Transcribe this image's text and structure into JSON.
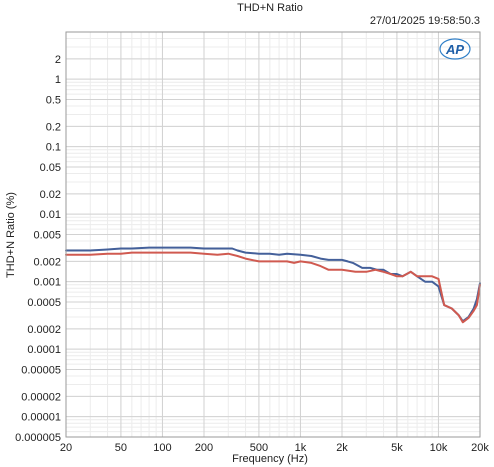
{
  "chart_data": {
    "type": "line",
    "title": "THD+N Ratio",
    "timestamp": "27/01/2025 19:58:50.3",
    "logo_text": "AP",
    "xlabel": "Frequency (Hz)",
    "ylabel": "THD+N Ratio (%)",
    "x_scale": "log",
    "y_scale": "log",
    "xlim": [
      20,
      20000
    ],
    "ylim": [
      5e-06,
      5
    ],
    "grid": true,
    "x_ticks": [
      {
        "value": 20,
        "label": "20"
      },
      {
        "value": 50,
        "label": "50"
      },
      {
        "value": 100,
        "label": "100"
      },
      {
        "value": 200,
        "label": "200"
      },
      {
        "value": 500,
        "label": "500"
      },
      {
        "value": 1000,
        "label": "1k"
      },
      {
        "value": 2000,
        "label": "2k"
      },
      {
        "value": 5000,
        "label": "5k"
      },
      {
        "value": 10000,
        "label": "10k"
      },
      {
        "value": 20000,
        "label": "20k"
      }
    ],
    "y_ticks": [
      {
        "value": 2,
        "label": "2"
      },
      {
        "value": 1,
        "label": "1"
      },
      {
        "value": 0.5,
        "label": "0.5"
      },
      {
        "value": 0.2,
        "label": "0.2"
      },
      {
        "value": 0.1,
        "label": "0.1"
      },
      {
        "value": 0.05,
        "label": "0.05"
      },
      {
        "value": 0.02,
        "label": "0.02"
      },
      {
        "value": 0.01,
        "label": "0.01"
      },
      {
        "value": 0.005,
        "label": "0.005"
      },
      {
        "value": 0.002,
        "label": "0.002"
      },
      {
        "value": 0.001,
        "label": "0.001"
      },
      {
        "value": 0.0005,
        "label": "0.0005"
      },
      {
        "value": 0.0002,
        "label": "0.0002"
      },
      {
        "value": 0.0001,
        "label": "0.0001"
      },
      {
        "value": 5e-05,
        "label": "0.00005"
      },
      {
        "value": 2e-05,
        "label": "0.00002"
      },
      {
        "value": 1e-05,
        "label": "0.00001"
      },
      {
        "value": 5e-06,
        "label": "0.000005"
      }
    ],
    "series": [
      {
        "color": "#44609a",
        "points": [
          [
            20,
            0.0029
          ],
          [
            25,
            0.0029
          ],
          [
            30,
            0.0029
          ],
          [
            40,
            0.003
          ],
          [
            50,
            0.0031
          ],
          [
            60,
            0.0031
          ],
          [
            80,
            0.0032
          ],
          [
            100,
            0.0032
          ],
          [
            120,
            0.0032
          ],
          [
            160,
            0.0032
          ],
          [
            200,
            0.0031
          ],
          [
            250,
            0.0031
          ],
          [
            320,
            0.0031
          ],
          [
            350,
            0.0029
          ],
          [
            400,
            0.0027
          ],
          [
            500,
            0.0026
          ],
          [
            600,
            0.0026
          ],
          [
            700,
            0.0025
          ],
          [
            800,
            0.0026
          ],
          [
            1000,
            0.0025
          ],
          [
            1200,
            0.0024
          ],
          [
            1400,
            0.0022
          ],
          [
            1600,
            0.0021
          ],
          [
            2000,
            0.0021
          ],
          [
            2200,
            0.002
          ],
          [
            2400,
            0.0019
          ],
          [
            2800,
            0.0016
          ],
          [
            3200,
            0.0016
          ],
          [
            3600,
            0.0015
          ],
          [
            4000,
            0.0015
          ],
          [
            4500,
            0.0013
          ],
          [
            5000,
            0.0013
          ],
          [
            5500,
            0.0012
          ],
          [
            6300,
            0.0014
          ],
          [
            7000,
            0.0012
          ],
          [
            8000,
            0.001
          ],
          [
            9000,
            0.001
          ],
          [
            10000,
            0.00085
          ],
          [
            11000,
            0.00045
          ],
          [
            12500,
            0.0004
          ],
          [
            14000,
            0.00032
          ],
          [
            15000,
            0.00026
          ],
          [
            16500,
            0.0003
          ],
          [
            18000,
            0.0004
          ],
          [
            19000,
            0.00055
          ],
          [
            20000,
            0.00095
          ]
        ]
      },
      {
        "color": "#d05a50",
        "points": [
          [
            20,
            0.0025
          ],
          [
            25,
            0.0025
          ],
          [
            30,
            0.0025
          ],
          [
            40,
            0.0026
          ],
          [
            50,
            0.0026
          ],
          [
            60,
            0.0027
          ],
          [
            80,
            0.0027
          ],
          [
            100,
            0.0027
          ],
          [
            120,
            0.0027
          ],
          [
            160,
            0.0027
          ],
          [
            200,
            0.0026
          ],
          [
            250,
            0.0025
          ],
          [
            300,
            0.0026
          ],
          [
            350,
            0.0024
          ],
          [
            400,
            0.0022
          ],
          [
            500,
            0.002
          ],
          [
            600,
            0.002
          ],
          [
            700,
            0.002
          ],
          [
            800,
            0.002
          ],
          [
            900,
            0.0019
          ],
          [
            1000,
            0.002
          ],
          [
            1200,
            0.0019
          ],
          [
            1400,
            0.0017
          ],
          [
            1600,
            0.0015
          ],
          [
            2000,
            0.0015
          ],
          [
            2500,
            0.0014
          ],
          [
            3000,
            0.0014
          ],
          [
            3500,
            0.0015
          ],
          [
            4000,
            0.0014
          ],
          [
            4500,
            0.0013
          ],
          [
            5000,
            0.0012
          ],
          [
            5500,
            0.0012
          ],
          [
            6300,
            0.0014
          ],
          [
            7000,
            0.0012
          ],
          [
            8000,
            0.0012
          ],
          [
            9000,
            0.0012
          ],
          [
            10000,
            0.0011
          ],
          [
            11000,
            0.00045
          ],
          [
            12500,
            0.0004
          ],
          [
            14000,
            0.00032
          ],
          [
            15000,
            0.00025
          ],
          [
            16500,
            0.00029
          ],
          [
            18000,
            0.00037
          ],
          [
            19000,
            0.00045
          ],
          [
            20000,
            0.0009
          ]
        ]
      }
    ]
  }
}
